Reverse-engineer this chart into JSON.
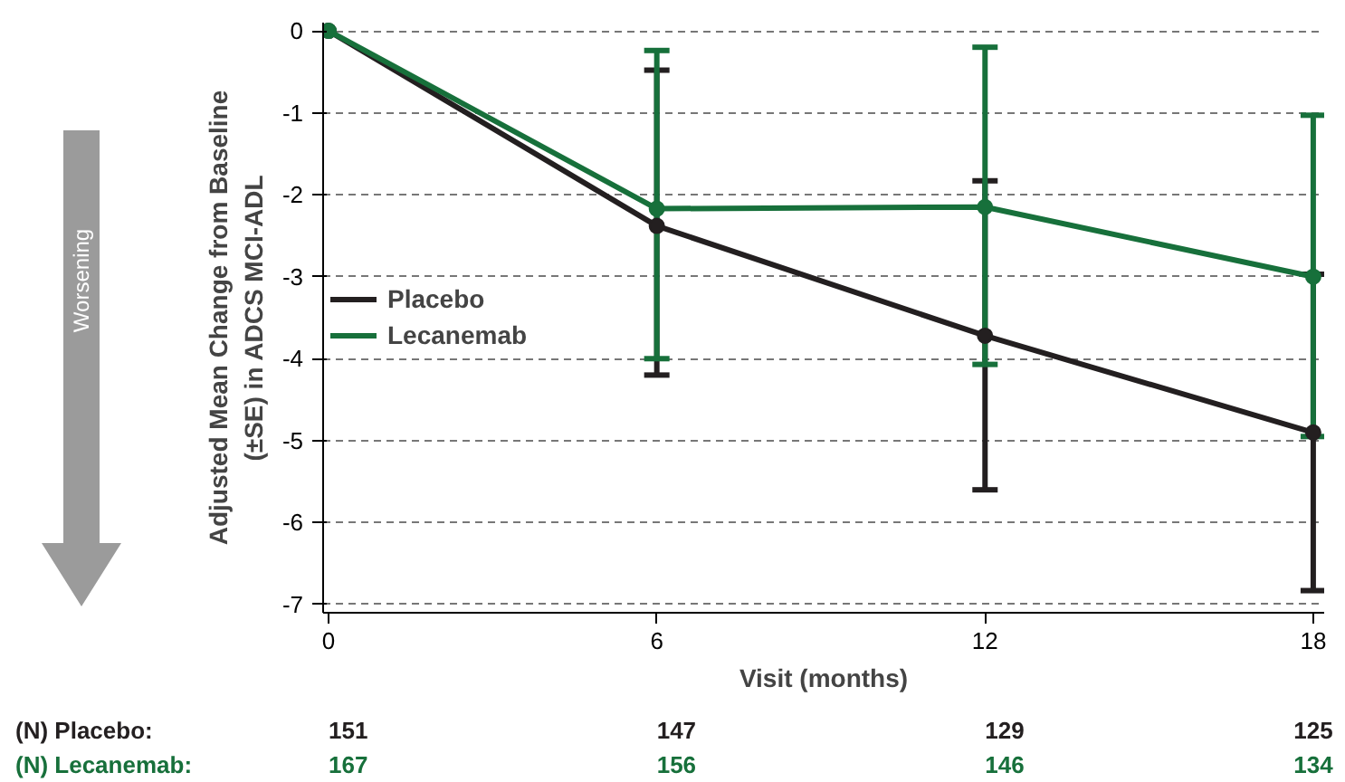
{
  "chart_data": {
    "type": "line",
    "xlabel": "Visit (months)",
    "ylabel": "Adjusted Mean Change from Baseline (±SE) in ADCS MCI-ADL",
    "x": [
      0,
      6,
      12,
      18
    ],
    "series": [
      {
        "name": "Placebo",
        "color": "#231f20",
        "values": [
          0,
          -2.38,
          -3.72,
          -4.9
        ],
        "errors": [
          null,
          [
            -4.2,
            -0.48
          ],
          [
            -5.6,
            -1.83
          ],
          [
            -6.83,
            -2.97
          ]
        ]
      },
      {
        "name": "Lecanemab",
        "color": "#17703b",
        "values": [
          0,
          -2.17,
          -2.15,
          -3.0
        ],
        "errors": [
          null,
          [
            -4.0,
            -0.24
          ],
          [
            -4.07,
            -0.2
          ],
          [
            -4.95,
            -1.03
          ]
        ]
      }
    ],
    "xlim": [
      -0.1,
      18.2
    ],
    "ylim": [
      -7.1,
      0.1
    ],
    "xticks": [
      0,
      6,
      12,
      18
    ],
    "yticks": [
      0,
      -1,
      -2,
      -3,
      -4,
      -5,
      -6,
      -7
    ],
    "grid": "y",
    "legend": "left",
    "marker": "circle",
    "line_style": "solid",
    "annotations": [
      "(N) Placebo:",
      "151",
      "147",
      "129",
      "125",
      "(N) Lecanemab:",
      "167",
      "156",
      "146",
      "134",
      "Worsening"
    ]
  }
}
